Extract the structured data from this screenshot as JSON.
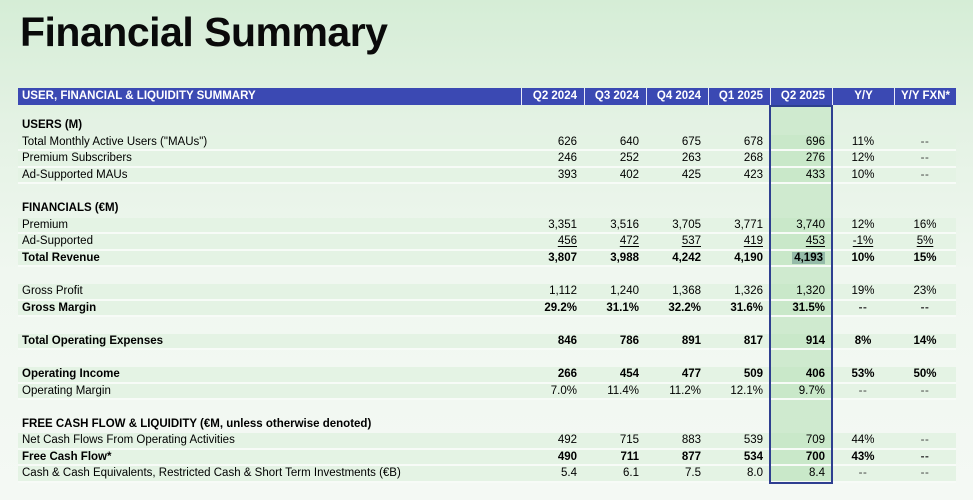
{
  "page": {
    "title": "Financial Summary"
  },
  "colors": {
    "header_bar_bg": "#3b49b3",
    "header_bar_text": "#ffffff",
    "row_stripe_green": "#e4f3e4",
    "highlight_column_fill": "#c9e8c9",
    "highlight_column_border": "#2e3f90",
    "selected_value_bg": "#95bba9",
    "page_gradient_top": "#d5edd6",
    "page_gradient_bottom": "#f4f9f4"
  },
  "table": {
    "header": {
      "label": "USER, FINANCIAL & LIQUIDITY SUMMARY",
      "columns": [
        "Q2 2024",
        "Q3 2024",
        "Q4 2024",
        "Q1 2025",
        "Q2 2025",
        "Y/Y",
        "Y/Y FXN*"
      ]
    },
    "highlighted_column": "Q2 2025",
    "selected_cell": {
      "row": "Total Revenue",
      "column": "Q2 2025",
      "value": "4,193"
    },
    "rows": [
      {
        "type": "section",
        "label": "USERS (M)"
      },
      {
        "type": "data",
        "label": "Total Monthly Active Users (\"MAUs\")",
        "values": [
          "626",
          "640",
          "675",
          "678",
          "696",
          "11%",
          "--"
        ]
      },
      {
        "type": "data",
        "label": "Premium Subscribers",
        "values": [
          "246",
          "252",
          "263",
          "268",
          "276",
          "12%",
          "--"
        ]
      },
      {
        "type": "data",
        "label": "Ad-Supported MAUs",
        "values": [
          "393",
          "402",
          "425",
          "423",
          "433",
          "10%",
          "--"
        ]
      },
      {
        "type": "blank"
      },
      {
        "type": "section",
        "label": "FINANCIALS (€M)"
      },
      {
        "type": "data",
        "label": "Premium",
        "values": [
          "3,351",
          "3,516",
          "3,705",
          "3,771",
          "3,740",
          "12%",
          "16%"
        ]
      },
      {
        "type": "data",
        "label": "Ad-Supported",
        "underline": true,
        "values": [
          "456",
          "472",
          "537",
          "419",
          "453",
          "-1%",
          "5%"
        ]
      },
      {
        "type": "data",
        "label": "Total Revenue",
        "bold": true,
        "select_value_index": 4,
        "values": [
          "3,807",
          "3,988",
          "4,242",
          "4,190",
          "4,193",
          "10%",
          "15%"
        ]
      },
      {
        "type": "blank"
      },
      {
        "type": "data",
        "label": "Gross Profit",
        "values": [
          "1,112",
          "1,240",
          "1,368",
          "1,326",
          "1,320",
          "19%",
          "23%"
        ]
      },
      {
        "type": "data",
        "label": "Gross Margin",
        "bold": true,
        "values": [
          "29.2%",
          "31.1%",
          "32.2%",
          "31.6%",
          "31.5%",
          "--",
          "--"
        ]
      },
      {
        "type": "blank"
      },
      {
        "type": "data",
        "label": "Total Operating Expenses",
        "bold": true,
        "values": [
          "846",
          "786",
          "891",
          "817",
          "914",
          "8%",
          "14%"
        ]
      },
      {
        "type": "blank"
      },
      {
        "type": "data",
        "label": "Operating Income",
        "bold": true,
        "values": [
          "266",
          "454",
          "477",
          "509",
          "406",
          "53%",
          "50%"
        ]
      },
      {
        "type": "data",
        "label": "Operating Margin",
        "values": [
          "7.0%",
          "11.4%",
          "11.2%",
          "12.1%",
          "9.7%",
          "--",
          "--"
        ]
      },
      {
        "type": "blank"
      },
      {
        "type": "section",
        "label": "FREE CASH FLOW & LIQUIDITY (€M, unless otherwise denoted)"
      },
      {
        "type": "data",
        "label": "Net Cash Flows From Operating Activities",
        "values": [
          "492",
          "715",
          "883",
          "539",
          "709",
          "44%",
          "--"
        ]
      },
      {
        "type": "data",
        "label": "Free Cash Flow*",
        "bold": true,
        "values": [
          "490",
          "711",
          "877",
          "534",
          "700",
          "43%",
          "--"
        ]
      },
      {
        "type": "data",
        "label": "Cash & Cash Equivalents, Restricted Cash & Short Term Investments (€B)",
        "values": [
          "5.4",
          "6.1",
          "7.5",
          "8.0",
          "8.4",
          "--",
          "--"
        ]
      }
    ]
  }
}
